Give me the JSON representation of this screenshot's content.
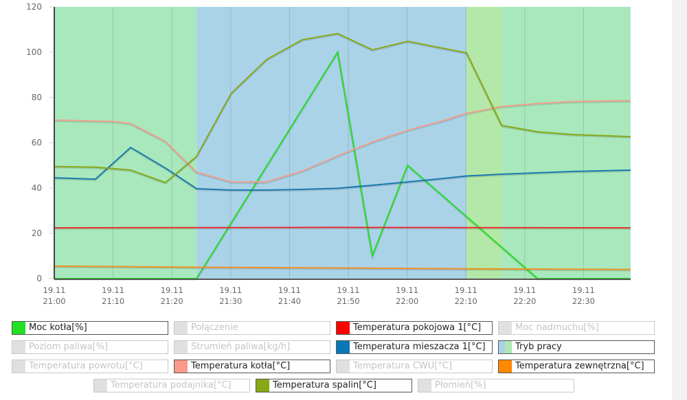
{
  "chart_data": {
    "type": "line",
    "title": "",
    "xlabel": "",
    "ylabel": "",
    "ylim": [
      0,
      120
    ],
    "yticks": [
      0,
      20,
      40,
      60,
      80,
      100,
      120
    ],
    "grid": "vertical",
    "xticks": [
      {
        "date": "19.11",
        "time": "21:00"
      },
      {
        "date": "19.11",
        "time": "21:10"
      },
      {
        "date": "19.11",
        "time": "21:20"
      },
      {
        "date": "19.11",
        "time": "21:30"
      },
      {
        "date": "19.11",
        "time": "21:40"
      },
      {
        "date": "19.11",
        "time": "21:50"
      },
      {
        "date": "19.11",
        "time": "22:00"
      },
      {
        "date": "19.11",
        "time": "22:10"
      },
      {
        "date": "19.11",
        "time": "22:20"
      },
      {
        "date": "19.11",
        "time": "22:30"
      }
    ],
    "x_minutes_range": [
      0,
      98
    ],
    "background_bands": [
      {
        "name": "Tryb pracy",
        "from_min": 0,
        "to_min": 24.2,
        "color": "#a8e8bc"
      },
      {
        "name": "Tryb pracy",
        "from_min": 24.2,
        "to_min": 70.1,
        "color": "#aad3e8"
      },
      {
        "name": "Tryb pracy",
        "from_min": 70.1,
        "to_min": 76.1,
        "color": "#b4e8a8"
      },
      {
        "name": "Tryb pracy",
        "from_min": 76.1,
        "to_min": 98,
        "color": "#a8e8bc"
      }
    ],
    "series": [
      {
        "name": "Moc kotła[%]",
        "color": "#22e022",
        "x": [
          0,
          24.2,
          48.2,
          54.1,
          60.1,
          82.2,
          98
        ],
        "values": [
          0,
          0,
          100,
          10,
          50,
          0,
          0
        ]
      },
      {
        "name": "Temperatura pokojowa 1[°C]",
        "color": "#e83030",
        "x": [
          0,
          24.2,
          48.2,
          70.1,
          98
        ],
        "values": [
          22.4,
          22.5,
          22.6,
          22.5,
          22.4
        ]
      },
      {
        "name": "Temperatura mieszacza 1[°C]",
        "color": "#1a7ab0",
        "x": [
          0,
          7,
          13,
          18.9,
          24.2,
          30.1,
          36.1,
          42.2,
          48.2,
          54.1,
          60.1,
          66.1,
          70.1,
          76.1,
          82.2,
          88.2,
          98
        ],
        "values": [
          44.5,
          43.9,
          57.9,
          48.8,
          39.7,
          39.1,
          39.1,
          39.4,
          39.9,
          41.2,
          42.7,
          44.2,
          45.3,
          46.1,
          46.7,
          47.3,
          47.9
        ]
      },
      {
        "name": "Temperatura kotła[°C]",
        "color": "#f0a090",
        "x": [
          0,
          10,
          13,
          18.9,
          24.2,
          30.1,
          36.1,
          42.2,
          48.2,
          54.1,
          60.1,
          66.1,
          70.1,
          76.1,
          82.2,
          88.2,
          98
        ],
        "values": [
          70,
          69.4,
          68.5,
          60.6,
          47,
          42.7,
          42.7,
          47.5,
          54.2,
          60.3,
          65.5,
          69.7,
          73,
          76,
          77.3,
          78.2,
          78.6
        ]
      },
      {
        "name": "Temperatura zewnętrzna[°C]",
        "color": "#f09020",
        "x": [
          0,
          24.2,
          48.2,
          70.1,
          98
        ],
        "values": [
          5.5,
          5.0,
          4.7,
          4.3,
          4.0
        ]
      },
      {
        "name": "Temperatura spalin[°C]",
        "color": "#88a818",
        "x": [
          0,
          7,
          13,
          18.9,
          24.2,
          30.1,
          36.1,
          42.2,
          48.2,
          54.1,
          60.1,
          66.1,
          70.1,
          76.1,
          82.2,
          88.2,
          98
        ],
        "values": [
          49.5,
          49.2,
          47.9,
          42.4,
          53.9,
          81.8,
          96.7,
          105.5,
          108.2,
          101,
          104.8,
          101.7,
          99.7,
          67.6,
          64.8,
          63.6,
          62.7
        ]
      }
    ]
  },
  "legend": {
    "rows": [
      [
        {
          "label": "Moc kotła[%]",
          "color": "#22e022",
          "active": true
        },
        {
          "label": "Połączenie",
          "color": "#e0e0e0",
          "active": false
        },
        {
          "label": "Temperatura pokojowa 1[°C]",
          "color": "#ff0000",
          "active": true
        },
        {
          "label": "Moc nadmuchu[%]",
          "color": "#e0e0e0",
          "active": false
        }
      ],
      [
        {
          "label": "Poziom paliwa[%]",
          "color": "#e0e0e0",
          "active": false
        },
        {
          "label": "Strumień paliwa[kg/h]",
          "color": "#e0e0e0",
          "active": false
        },
        {
          "label": "Temperatura mieszacza 1[°C]",
          "color": "#0a78b8",
          "active": true
        },
        {
          "label": "Tryb pracy",
          "color": "tryb",
          "active": true
        }
      ],
      [
        {
          "label": "Temperatura powrotu[°C]",
          "color": "#e0e0e0",
          "active": false
        },
        {
          "label": "Temperatura kotła[°C]",
          "color": "#fa9a88",
          "active": true
        },
        {
          "label": "Temperatura CWU[°C]",
          "color": "#e0e0e0",
          "active": false
        },
        {
          "label": "Temperatura zewnętrzna[°C]",
          "color": "#ff8800",
          "active": true
        }
      ],
      [
        {
          "label": "Temperatura podajnika[°C]",
          "color": "#e0e0e0",
          "active": false
        },
        {
          "label": "Temperatura spalin[°C]",
          "color": "#88a818",
          "active": true
        },
        {
          "label": "Płomień[%]",
          "color": "#e0e0e0",
          "active": false
        }
      ]
    ]
  }
}
